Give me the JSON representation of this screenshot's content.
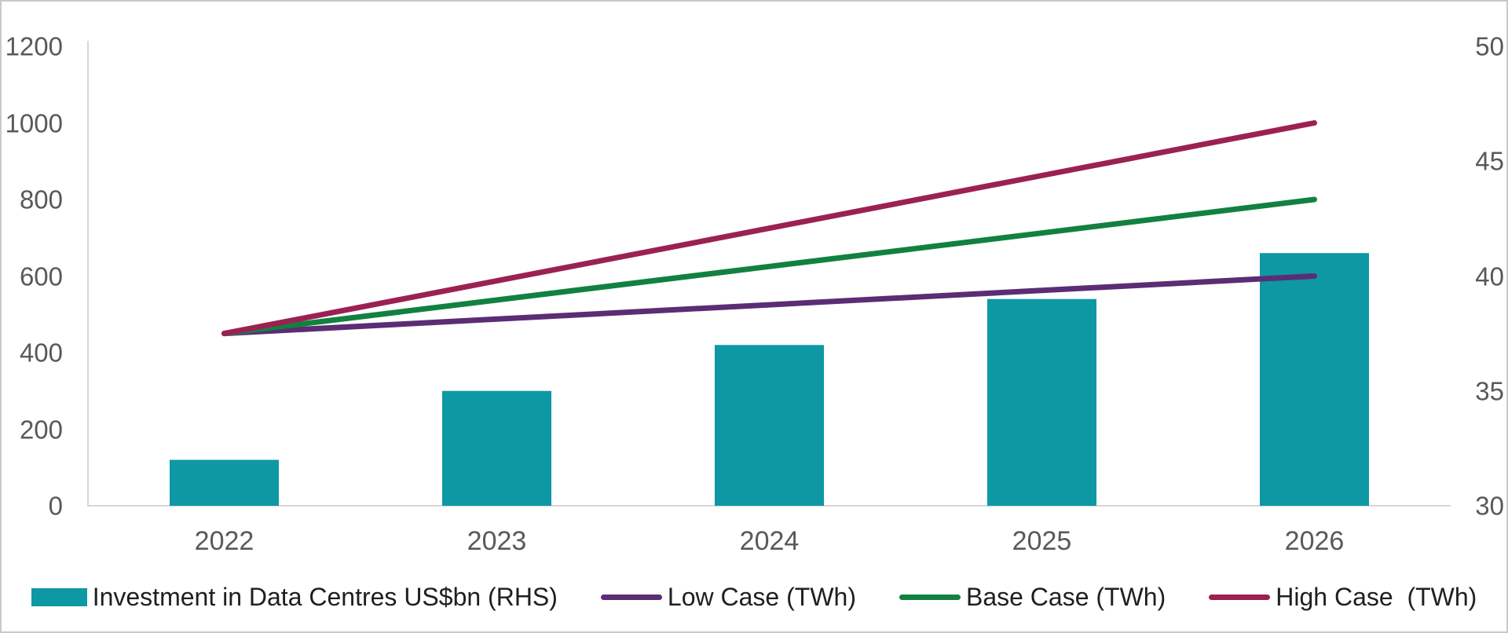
{
  "chart_data": {
    "type": "combo_bar_line",
    "title": "",
    "categories": [
      "2022",
      "2023",
      "2024",
      "2025",
      "2026"
    ],
    "series": [
      {
        "name": "Investment in Data Centres US$bn (RHS)",
        "type": "bar",
        "axis": "right",
        "color": "#0D98A4",
        "values": [
          32,
          35,
          37,
          39,
          41
        ]
      },
      {
        "name": "Low Case (TWh)",
        "type": "line",
        "axis": "left",
        "color": "#5B2D74",
        "values": [
          450,
          487.5,
          525,
          562.5,
          600
        ]
      },
      {
        "name": "Base Case (TWh)",
        "type": "line",
        "axis": "left",
        "color": "#12813F",
        "values": [
          450,
          537.5,
          625,
          712.5,
          800
        ]
      },
      {
        "name": "High Case  (TWh)",
        "type": "line",
        "axis": "left",
        "color": "#9C2153",
        "values": [
          450,
          587.5,
          725,
          862.5,
          1000
        ]
      }
    ],
    "left_axis": {
      "min": 0,
      "max": 1200,
      "ticks": [
        0,
        200,
        400,
        600,
        800,
        1000,
        1200
      ]
    },
    "right_axis": {
      "min": 30,
      "max": 50,
      "ticks": [
        30,
        35,
        40,
        45,
        50
      ]
    },
    "legend_position": "bottom",
    "gridlines": false,
    "colors": {
      "axis_text": "#595959",
      "legend_text": "#1F1F1F",
      "axis_line": "#D6D6D6"
    }
  }
}
